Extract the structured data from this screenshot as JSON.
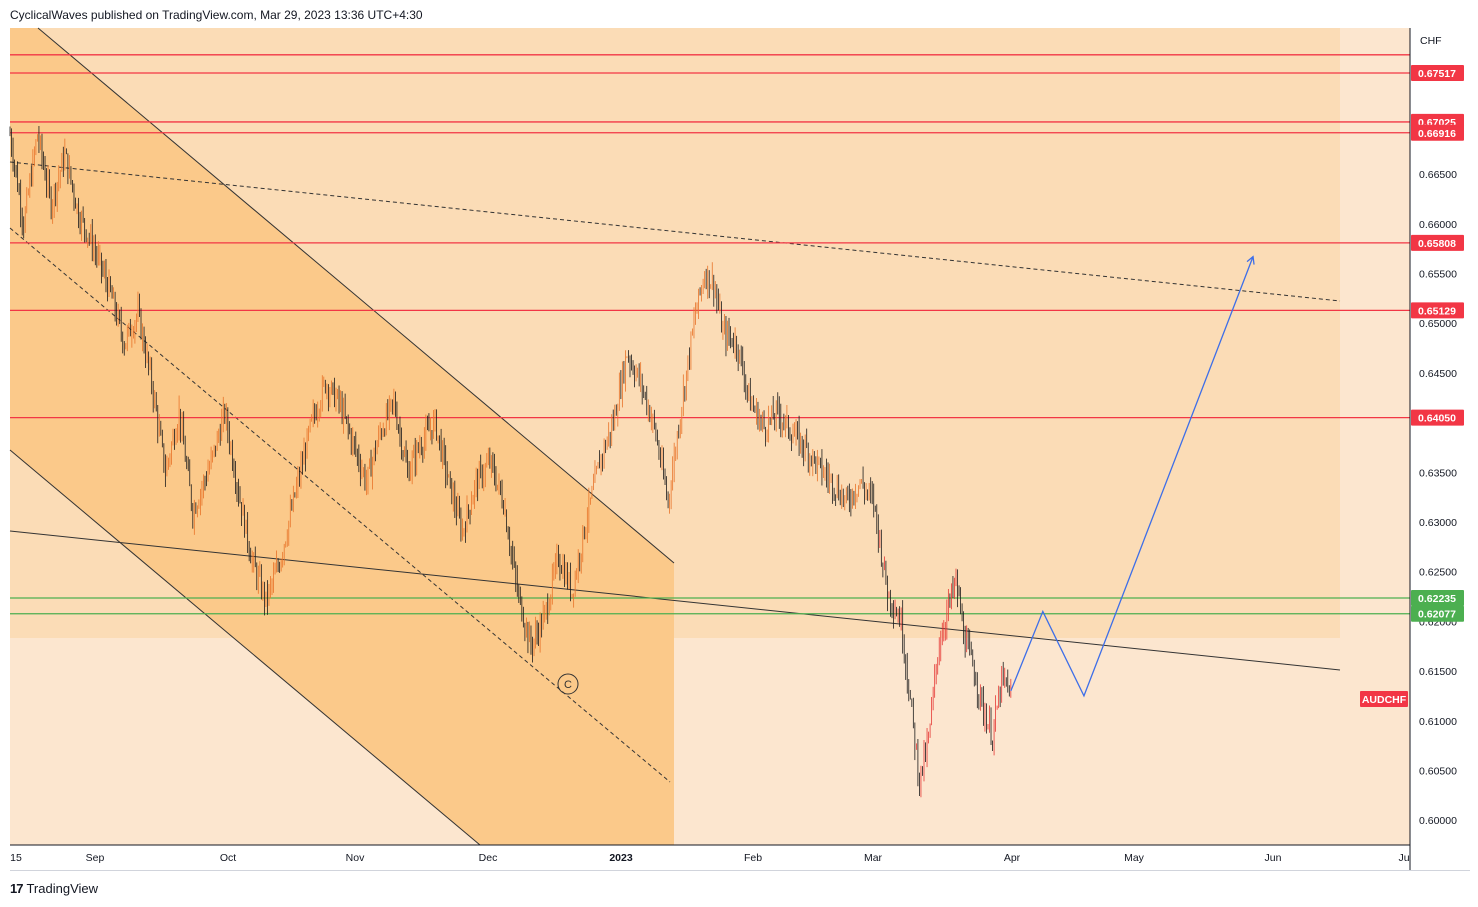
{
  "header": {
    "text": "CyclicalWaves published on TradingView.com, Mar 29, 2023 13:36 UTC+4:30"
  },
  "footer": {
    "brand": "TradingView",
    "icon": "tradingview-logo-icon"
  },
  "colors": {
    "bg_panel": "#fce6cf",
    "zone_light": "#fbdcb6",
    "channel_fill": "#fbc98a",
    "red_level": "#f23645",
    "green_level": "#4caf50",
    "bull_candle": "#e8742a",
    "bear_candle": "#1c1c1c",
    "recent_candle": "#e53935",
    "projection": "#3d6ee8"
  },
  "chart_data": {
    "type": "candlestick",
    "symbol": "AUDCHF",
    "currency_label": "CHF",
    "x_ticks": [
      "15",
      "Sep",
      "Oct",
      "Nov",
      "Dec",
      "2023",
      "Feb",
      "Mar",
      "Apr",
      "May",
      "Jun",
      "Ju"
    ],
    "y_ticks": [
      "0.66500",
      "0.66000",
      "0.65500",
      "0.65000",
      "0.64500",
      "0.63500",
      "0.63000",
      "0.62500",
      "0.62000",
      "0.61500",
      "0.61000",
      "0.60500",
      "0.60000"
    ],
    "ylim": [
      0.5975,
      0.6797
    ],
    "red_levels": [
      0.677,
      0.67517,
      0.67025,
      0.66916,
      0.65808,
      0.65129,
      0.6405
    ],
    "red_level_labels": [
      "",
      "0.67517",
      "0.67025",
      "0.66916",
      "0.65808",
      "0.65129",
      "0.64050"
    ],
    "green_levels": [
      0.62235,
      0.62077
    ],
    "green_level_labels": [
      "0.62235",
      "0.62077"
    ],
    "current_price_label": "AUDCHF",
    "wave_label": "C",
    "price_path": [
      [
        0,
        0.669
      ],
      [
        3,
        0.66
      ],
      [
        6,
        0.669
      ],
      [
        9,
        0.662
      ],
      [
        12,
        0.667
      ],
      [
        15,
        0.661
      ],
      [
        18,
        0.658
      ],
      [
        22,
        0.653
      ],
      [
        25,
        0.648
      ],
      [
        28,
        0.651
      ],
      [
        31,
        0.644
      ],
      [
        34,
        0.635
      ],
      [
        37,
        0.641
      ],
      [
        40,
        0.631
      ],
      [
        44,
        0.636
      ],
      [
        47,
        0.641
      ],
      [
        50,
        0.633
      ],
      [
        53,
        0.626
      ],
      [
        56,
        0.622
      ],
      [
        59,
        0.626
      ],
      [
        62,
        0.632
      ],
      [
        66,
        0.64
      ],
      [
        69,
        0.644
      ],
      [
        72,
        0.642
      ],
      [
        75,
        0.638
      ],
      [
        78,
        0.634
      ],
      [
        81,
        0.639
      ],
      [
        84,
        0.642
      ],
      [
        87,
        0.635
      ],
      [
        90,
        0.638
      ],
      [
        93,
        0.64
      ],
      [
        96,
        0.634
      ],
      [
        99,
        0.629
      ],
      [
        102,
        0.634
      ],
      [
        105,
        0.636
      ],
      [
        108,
        0.632
      ],
      [
        111,
        0.623
      ],
      [
        114,
        0.6175
      ],
      [
        117,
        0.6205
      ],
      [
        120,
        0.6265
      ],
      [
        123,
        0.623
      ],
      [
        126,
        0.63
      ],
      [
        129,
        0.636
      ],
      [
        132,
        0.64
      ],
      [
        135,
        0.647
      ],
      [
        138,
        0.644
      ],
      [
        141,
        0.6395
      ],
      [
        144,
        0.632
      ],
      [
        147,
        0.642
      ],
      [
        150,
        0.651
      ],
      [
        152,
        0.655
      ],
      [
        154,
        0.654
      ],
      [
        156,
        0.649
      ],
      [
        159,
        0.648
      ],
      [
        162,
        0.642
      ],
      [
        165,
        0.6395
      ],
      [
        168,
        0.641
      ],
      [
        171,
        0.639
      ],
      [
        174,
        0.6375
      ],
      [
        177,
        0.6355
      ],
      [
        180,
        0.634
      ],
      [
        183,
        0.632
      ],
      [
        186,
        0.634
      ],
      [
        189,
        0.632
      ],
      [
        192,
        0.623
      ],
      [
        195,
        0.62
      ],
      [
        197,
        0.612
      ],
      [
        199,
        0.604
      ],
      [
        201,
        0.608
      ],
      [
        203,
        0.617
      ],
      [
        205,
        0.621
      ],
      [
        207,
        0.624
      ],
      [
        209,
        0.618
      ],
      [
        211,
        0.615
      ],
      [
        213,
        0.611
      ],
      [
        215,
        0.6085
      ],
      [
        217,
        0.614
      ],
      [
        219,
        0.613
      ]
    ],
    "projection_path": [
      [
        219,
        0.613
      ],
      [
        226,
        0.621
      ],
      [
        235,
        0.6125
      ],
      [
        272,
        0.6567
      ]
    ],
    "annotations": [
      "descending channel",
      "C wave low",
      "projected rally to 0.657"
    ]
  }
}
